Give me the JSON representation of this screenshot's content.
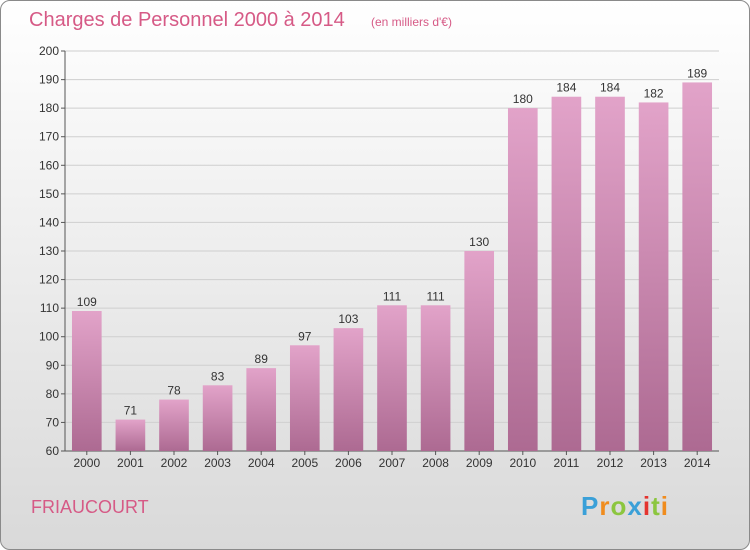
{
  "header": {
    "title": "Charges de Personnel 2000 à 2014",
    "subtitle": "(en milliers d'€)"
  },
  "footer": {
    "commune": "FRIAUCOURT",
    "logo_text": "Proxiti"
  },
  "colors": {
    "accent": "#d65a86",
    "bar_top": "#e2a3c9",
    "bar_bottom": "#ad6a92",
    "grid": "#cfcfcf",
    "axis": "#555555"
  },
  "chart_data": {
    "type": "bar",
    "categories": [
      "2000",
      "2001",
      "2002",
      "2003",
      "2004",
      "2005",
      "2006",
      "2007",
      "2008",
      "2009",
      "2010",
      "2011",
      "2012",
      "2013",
      "2014"
    ],
    "values": [
      109,
      71,
      78,
      83,
      89,
      97,
      103,
      111,
      111,
      130,
      180,
      184,
      184,
      182,
      189
    ],
    "title": "Charges de Personnel 2000 à 2014",
    "ylim": [
      60,
      200
    ],
    "yticks": [
      60,
      70,
      80,
      90,
      100,
      110,
      120,
      130,
      140,
      150,
      160,
      170,
      180,
      190,
      200
    ],
    "grid": true,
    "data_labels": true
  }
}
